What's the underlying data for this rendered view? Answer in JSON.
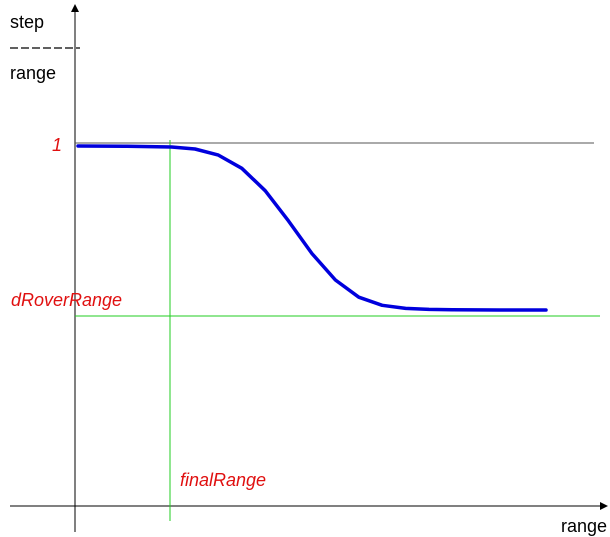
{
  "chart_data": {
    "type": "line",
    "ylabel_top": "step",
    "ylabel_bottom": "range",
    "xlabel": "range",
    "markers": {
      "y_one_label": "1",
      "y_rover_label": "dRoverRange",
      "x_final_label": "finalRange"
    },
    "series": [
      {
        "x": [
          0,
          0.1,
          0.2,
          0.25,
          0.3,
          0.35,
          0.4,
          0.45,
          0.5,
          0.55,
          0.6,
          0.65,
          0.7,
          0.75,
          0.8,
          0.9,
          1.0
        ],
        "y": [
          1.0,
          0.999,
          0.995,
          0.985,
          0.955,
          0.89,
          0.78,
          0.63,
          0.47,
          0.34,
          0.255,
          0.215,
          0.2,
          0.195,
          0.193,
          0.192,
          0.192
        ]
      }
    ],
    "reference_lines": {
      "y_one": 1,
      "y_rover": 0.17,
      "x_final": 0.19
    },
    "colors": {
      "curve": "#0000dd",
      "rover_line": "#22cc22",
      "final_line": "#22cc22",
      "one_line": "#555555",
      "marker_text": "#e01010",
      "axes": "#000000"
    }
  }
}
